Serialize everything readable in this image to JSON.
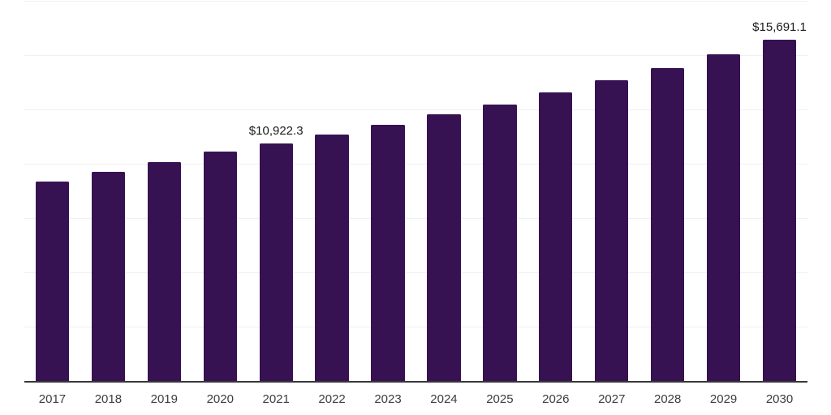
{
  "chart_data": {
    "type": "bar",
    "title": "",
    "xlabel": "",
    "ylabel": "",
    "categories": [
      "2017",
      "2018",
      "2019",
      "2020",
      "2021",
      "2022",
      "2023",
      "2024",
      "2025",
      "2026",
      "2027",
      "2028",
      "2029",
      "2030"
    ],
    "values": [
      9180,
      9615,
      10075,
      10570,
      10922.3,
      11355,
      11780,
      12275,
      12725,
      13270,
      13855,
      14400,
      15050,
      15691.1
    ],
    "point_labels": [
      "",
      "",
      "",
      "",
      "$10,922.3",
      "",
      "",
      "",
      "",
      "",
      "",
      "",
      "",
      "$15,691.1"
    ],
    "ylim": [
      0,
      17500
    ],
    "gridline_step": 2500,
    "grid": true,
    "legend": false,
    "y_axis_labels_shown": false
  },
  "colors": {
    "bar": "#371253",
    "gridline": "#f0f0f0",
    "axis": "#383838",
    "tick_label": "#3d3d3d",
    "data_label": "#1a1a1a",
    "background": "#ffffff"
  }
}
